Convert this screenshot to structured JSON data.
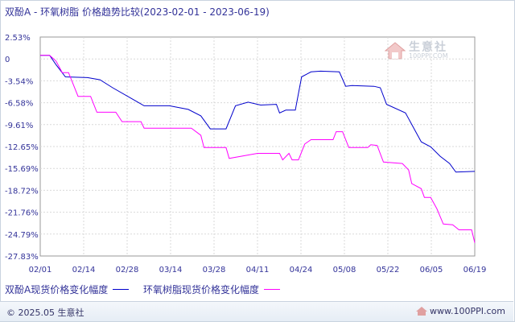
{
  "title": "双酚A - 环氧树脂 价格趋势比较(2023-02-01 - 2023-06-19)",
  "watermark": {
    "brand": "生意社",
    "url": "100PPI.COM"
  },
  "footer": {
    "copyright": "© 2025.05 生意社",
    "site": "www.100PPI.com"
  },
  "colors": {
    "series_a": "#0000cc",
    "series_b": "#ff00ff",
    "grid": "#d9d9d9",
    "text": "#333399"
  },
  "chart_data": {
    "type": "line",
    "title": "双酚A - 环氧树脂 价格趋势比较(2023-02-01 - 2023-06-19)",
    "xlabel": "",
    "ylabel": "",
    "x_ticks": [
      "02/01",
      "02/14",
      "02/28",
      "03/14",
      "03/28",
      "04/11",
      "04/24",
      "05/08",
      "05/22",
      "06/05",
      "06/19"
    ],
    "y_ticks": [
      "2.53%",
      "0",
      "-3.54%",
      "-6.58%",
      "-9.61%",
      "-12.65%",
      "-15.69%",
      "-18.72%",
      "-21.76%",
      "-24.79%",
      "-27.83%"
    ],
    "ylim": [
      -27.83,
      2.53
    ],
    "grid": true,
    "legend": "bottom",
    "series": [
      {
        "name": "双酚A现货价格变化幅度",
        "color": "#0000cc",
        "points": [
          [
            "2023-02-01",
            0
          ],
          [
            "2023-02-04",
            0
          ],
          [
            "2023-02-06",
            -1.3
          ],
          [
            "2023-02-09",
            -3.0
          ],
          [
            "2023-02-16",
            -3.1
          ],
          [
            "2023-02-20",
            -3.4
          ],
          [
            "2023-02-24",
            -4.5
          ],
          [
            "2023-03-02",
            -6.0
          ],
          [
            "2023-03-06",
            -7.0
          ],
          [
            "2023-03-14",
            -7.0
          ],
          [
            "2023-03-20",
            -7.5
          ],
          [
            "2023-03-24",
            -8.4
          ],
          [
            "2023-03-27",
            -10.2
          ],
          [
            "2023-04-01",
            -10.2
          ],
          [
            "2023-04-04",
            -7.0
          ],
          [
            "2023-04-08",
            -6.5
          ],
          [
            "2023-04-12",
            -6.9
          ],
          [
            "2023-04-17",
            -6.8
          ],
          [
            "2023-04-18",
            -8.0
          ],
          [
            "2023-04-20",
            -7.6
          ],
          [
            "2023-04-23",
            -7.6
          ],
          [
            "2023-04-25",
            -3.0
          ],
          [
            "2023-04-28",
            -2.3
          ],
          [
            "2023-05-01",
            -2.2
          ],
          [
            "2023-05-07",
            -2.3
          ],
          [
            "2023-05-09",
            -4.3
          ],
          [
            "2023-05-11",
            -4.2
          ],
          [
            "2023-05-18",
            -4.3
          ],
          [
            "2023-05-20",
            -4.5
          ],
          [
            "2023-05-22",
            -6.8
          ],
          [
            "2023-05-28",
            -8.0
          ],
          [
            "2023-06-02",
            -12.0
          ],
          [
            "2023-06-05",
            -12.7
          ],
          [
            "2023-06-08",
            -14.0
          ],
          [
            "2023-06-11",
            -15.0
          ],
          [
            "2023-06-13",
            -16.2
          ],
          [
            "2023-06-19",
            -16.1
          ]
        ]
      },
      {
        "name": "环氧树脂现货价格变化幅度",
        "color": "#ff00ff",
        "points": [
          [
            "2023-02-01",
            0
          ],
          [
            "2023-02-04",
            0
          ],
          [
            "2023-02-06",
            -0.8
          ],
          [
            "2023-02-08",
            -2.4
          ],
          [
            "2023-02-10",
            -2.4
          ],
          [
            "2023-02-13",
            -5.7
          ],
          [
            "2023-02-17",
            -5.7
          ],
          [
            "2023-02-19",
            -7.9
          ],
          [
            "2023-02-25",
            -7.9
          ],
          [
            "2023-02-27",
            -9.2
          ],
          [
            "2023-03-05",
            -9.2
          ],
          [
            "2023-03-06",
            -10.1
          ],
          [
            "2023-03-21",
            -10.1
          ],
          [
            "2023-03-24",
            -11.1
          ],
          [
            "2023-03-25",
            -12.8
          ],
          [
            "2023-04-01",
            -12.8
          ],
          [
            "2023-04-02",
            -14.3
          ],
          [
            "2023-04-11",
            -13.6
          ],
          [
            "2023-04-18",
            -13.6
          ],
          [
            "2023-04-19",
            -14.5
          ],
          [
            "2023-04-21",
            -13.6
          ],
          [
            "2023-04-22",
            -14.5
          ],
          [
            "2023-04-24",
            -14.5
          ],
          [
            "2023-04-26",
            -12.3
          ],
          [
            "2023-04-28",
            -11.7
          ],
          [
            "2023-05-05",
            -11.7
          ],
          [
            "2023-05-06",
            -10.6
          ],
          [
            "2023-05-08",
            -10.6
          ],
          [
            "2023-05-10",
            -12.8
          ],
          [
            "2023-05-16",
            -12.8
          ],
          [
            "2023-05-17",
            -12.4
          ],
          [
            "2023-05-19",
            -12.5
          ],
          [
            "2023-05-21",
            -14.8
          ],
          [
            "2023-05-27",
            -15.0
          ],
          [
            "2023-05-29",
            -15.9
          ],
          [
            "2023-05-30",
            -17.8
          ],
          [
            "2023-06-02",
            -18.5
          ],
          [
            "2023-06-03",
            -19.7
          ],
          [
            "2023-06-05",
            -19.7
          ],
          [
            "2023-06-07",
            -21.3
          ],
          [
            "2023-06-09",
            -23.4
          ],
          [
            "2023-06-12",
            -23.5
          ],
          [
            "2023-06-14",
            -24.2
          ],
          [
            "2023-06-18",
            -24.2
          ],
          [
            "2023-06-19",
            -26.0
          ]
        ]
      }
    ]
  }
}
